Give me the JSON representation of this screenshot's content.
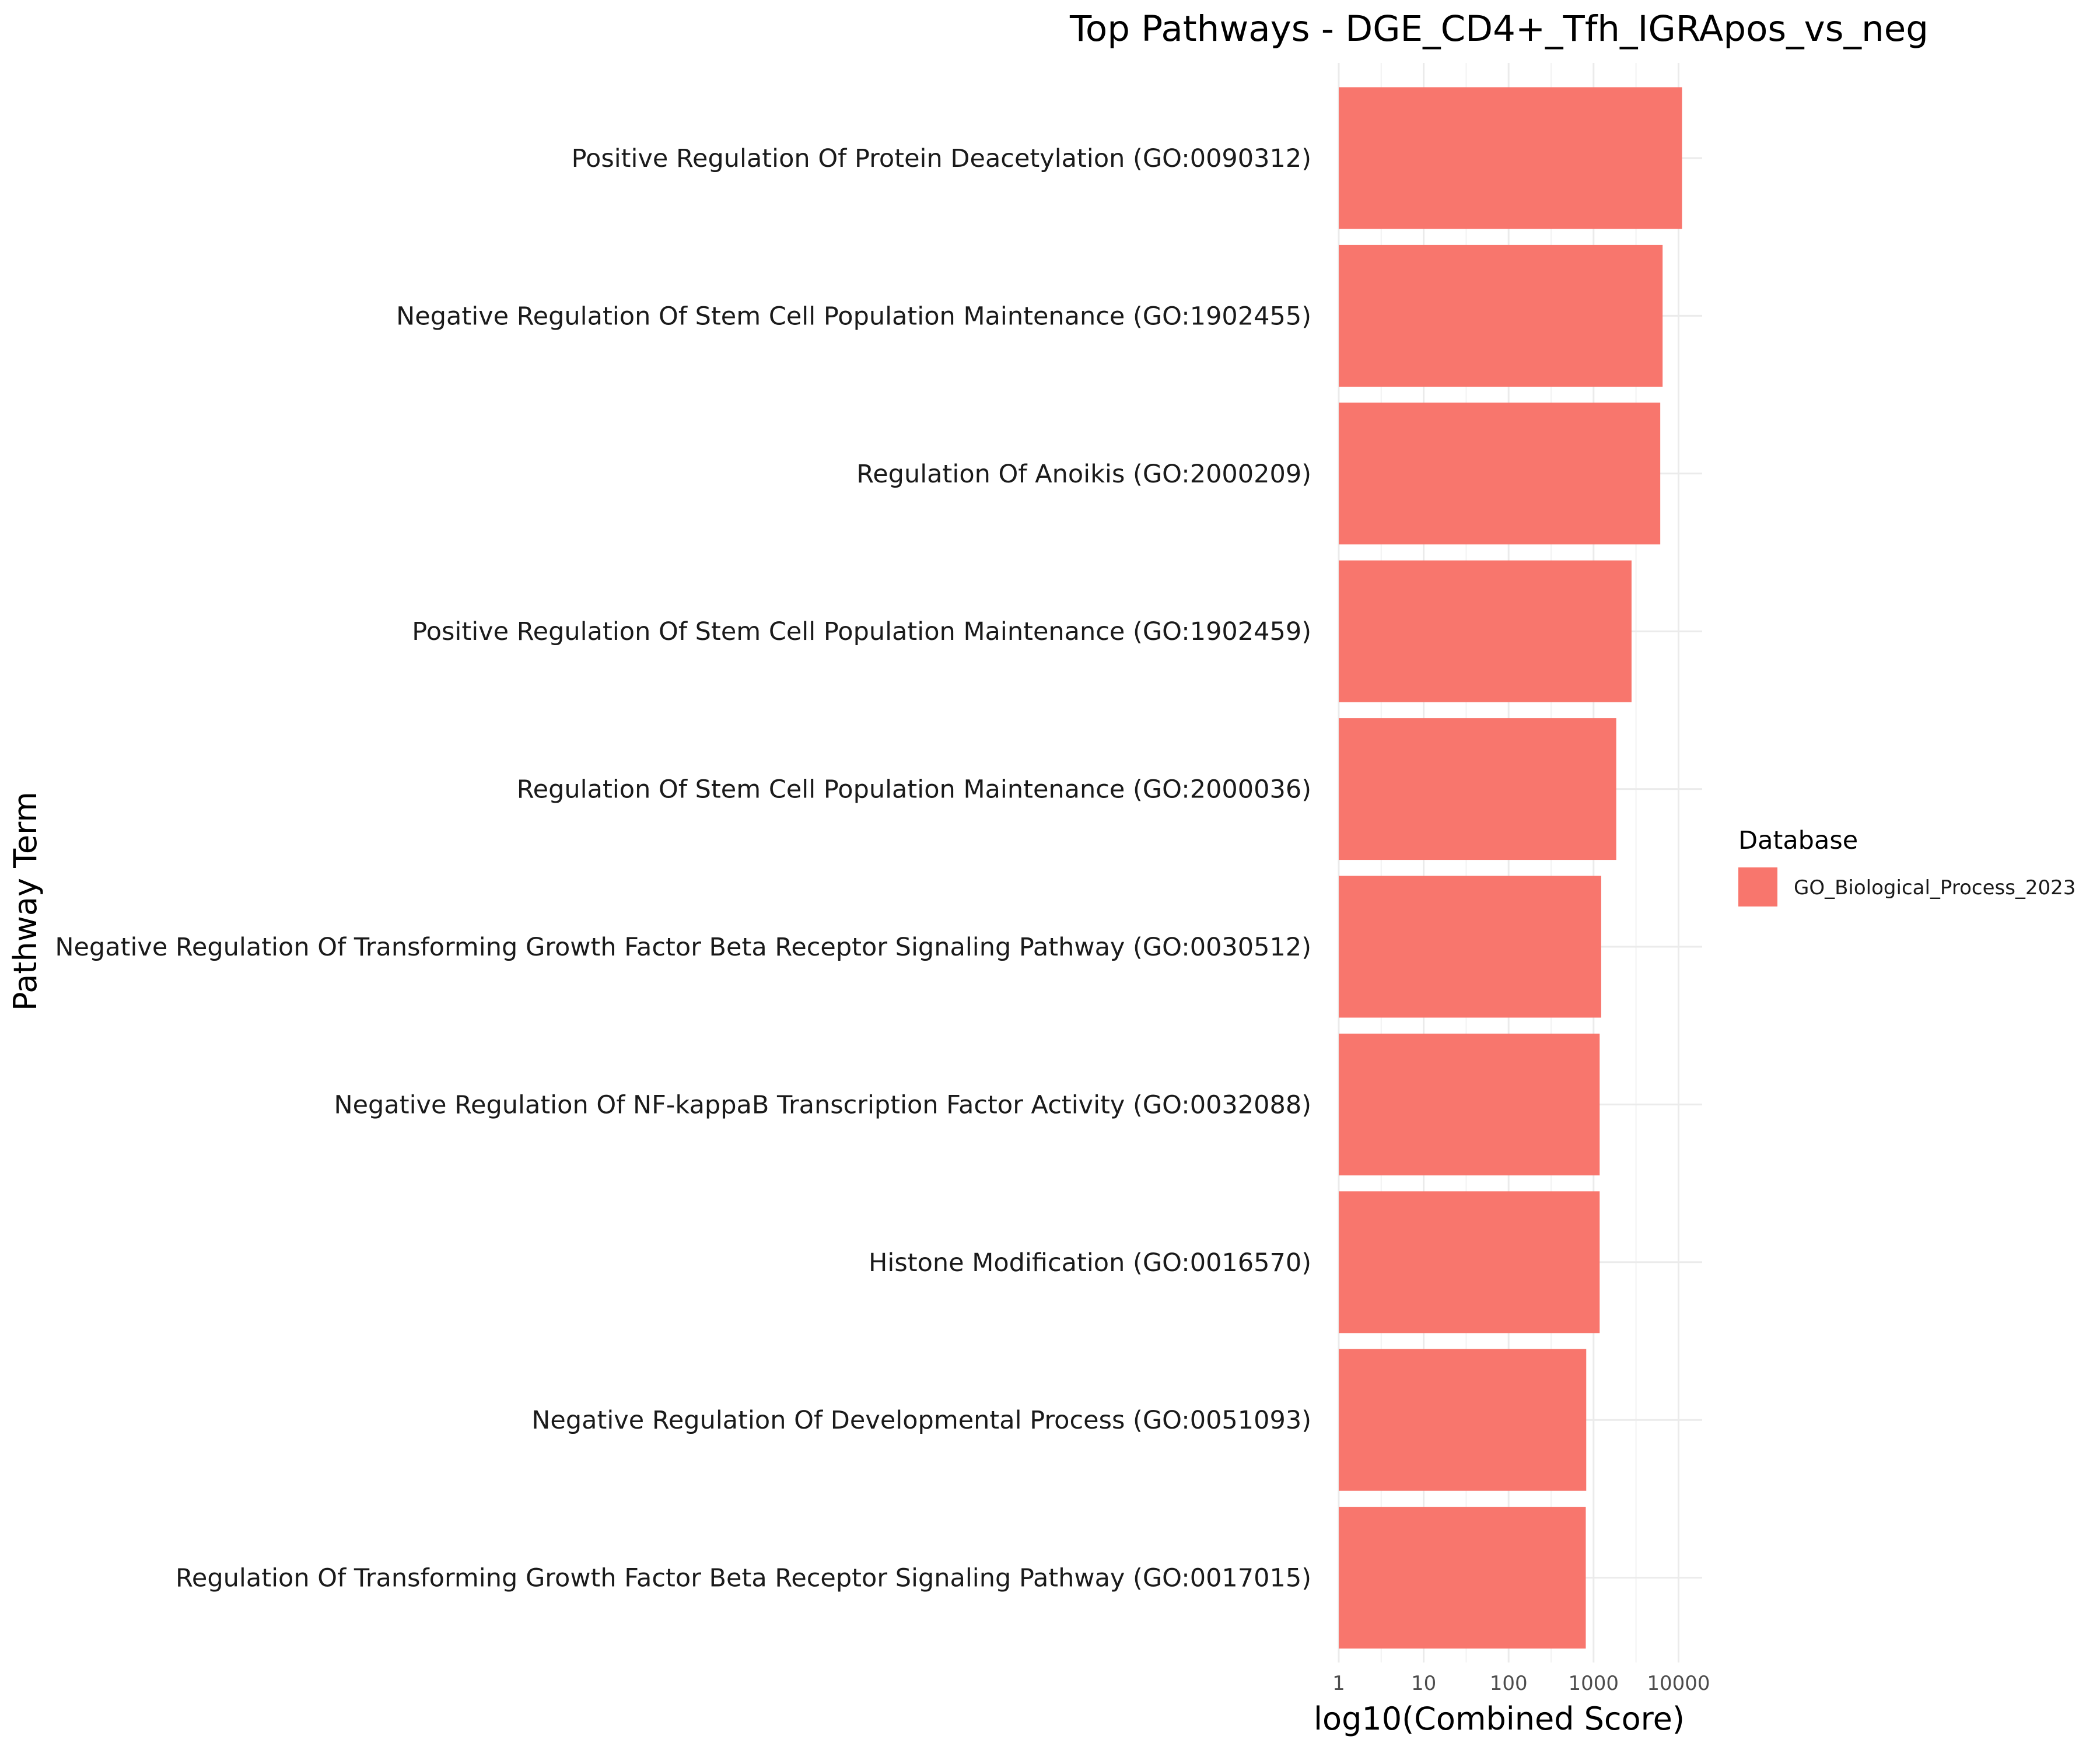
{
  "chart_data": {
    "type": "bar",
    "orientation": "horizontal",
    "title": "Top Pathways - DGE_CD4+_Tfh_IGRApos_vs_neg",
    "xlabel": "log10(Combined Score)",
    "ylabel": "Pathway Term",
    "x_scale": "log10",
    "xlim": [
      1,
      19000
    ],
    "x_ticks": [
      1,
      10,
      100,
      1000,
      10000
    ],
    "x_tick_labels": [
      "1",
      "10",
      "100",
      "1000",
      "10000"
    ],
    "grid": true,
    "legend_position": "right",
    "legend_title": "Database",
    "categories": [
      "Positive Regulation Of Protein Deacetylation (GO:0090312)",
      "Negative Regulation Of Stem Cell Population Maintenance (GO:1902455)",
      "Regulation Of Anoikis (GO:2000209)",
      "Positive Regulation Of Stem Cell Population Maintenance (GO:1902459)",
      "Regulation Of Stem Cell Population Maintenance (GO:2000036)",
      "Negative Regulation Of Transforming Growth Factor Beta Receptor Signaling Pathway (GO:0030512)",
      "Negative Regulation Of NF-kappaB Transcription Factor Activity (GO:0032088)",
      "Histone Modification (GO:0016570)",
      "Negative Regulation Of Developmental Process (GO:0051093)",
      "Regulation Of Transforming Growth Factor Beta Receptor Signaling Pathway (GO:0017015)"
    ],
    "series": [
      {
        "name": "GO_Biological_Process_2023",
        "color": "#F8766D",
        "values": [
          11000,
          6500,
          6100,
          2800,
          1850,
          1230,
          1180,
          1180,
          820,
          810
        ]
      }
    ]
  }
}
